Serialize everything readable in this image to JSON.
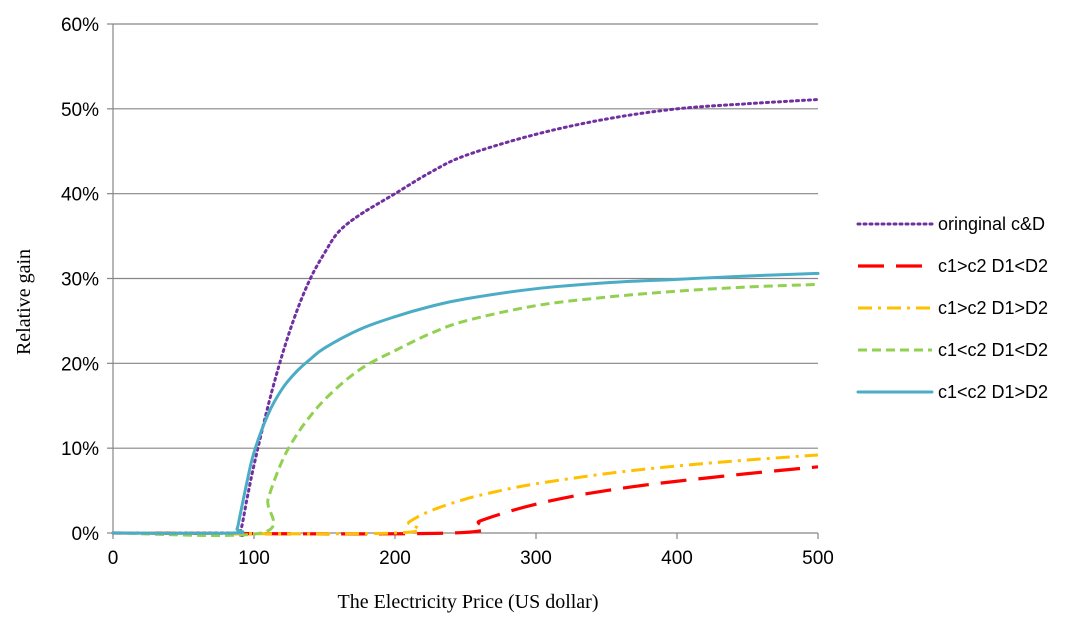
{
  "chart_data": {
    "type": "line",
    "title": "",
    "xlabel": "The Electricity Price (US dollar)",
    "ylabel": "Relative gain",
    "xlim": [
      0,
      500
    ],
    "ylim": [
      0,
      60
    ],
    "x_ticks": [
      0,
      100,
      200,
      300,
      400,
      500
    ],
    "y_ticks": [
      0,
      10,
      20,
      30,
      40,
      50,
      60
    ],
    "y_tick_labels": [
      "0%",
      "10%",
      "20%",
      "30%",
      "40%",
      "50%",
      "60%"
    ],
    "grid": "horizontal",
    "legend_position": "right",
    "series": [
      {
        "name": "oringinal c&D",
        "color": "#7030a0",
        "dash": "dotted",
        "x": [
          0,
          85,
          90,
          95,
          100,
          110,
          120,
          130,
          140,
          150,
          160,
          175,
          200,
          225,
          250,
          300,
          350,
          400,
          450,
          500
        ],
        "y": [
          0,
          0,
          0,
          4,
          8,
          15,
          21,
          26,
          30,
          33,
          35.5,
          37.5,
          40,
          42.5,
          44.5,
          47,
          48.8,
          50,
          50.6,
          51.1
        ]
      },
      {
        "name": "c1>c2 D1<D2",
        "color": "#ff0000",
        "dash": "long-dash",
        "x": [
          0,
          240,
          260,
          280,
          300,
          325,
          350,
          375,
          400,
          450,
          500
        ],
        "y": [
          0,
          0,
          1.4,
          2.5,
          3.4,
          4.3,
          5.0,
          5.6,
          6.1,
          7.0,
          7.8
        ]
      },
      {
        "name": "c1>c2 D1>D2",
        "color": "#ffc000",
        "dash": "dash-dot",
        "x": [
          0,
          200,
          210,
          225,
          250,
          275,
          300,
          350,
          400,
          450,
          500
        ],
        "y": [
          0,
          0,
          1.3,
          2.6,
          4.0,
          5.0,
          5.8,
          7.0,
          7.9,
          8.6,
          9.2
        ]
      },
      {
        "name": "c1<c2 D1<D2",
        "color": "#92d050",
        "dash": "dashed",
        "x": [
          0,
          105,
          110,
          120,
          130,
          140,
          150,
          165,
          180,
          200,
          225,
          250,
          300,
          350,
          400,
          450,
          500
        ],
        "y": [
          0,
          0,
          4,
          8.5,
          11.5,
          13.8,
          15.7,
          18,
          19.8,
          21.5,
          23.5,
          25,
          26.8,
          27.8,
          28.5,
          29,
          29.3
        ]
      },
      {
        "name": "c1<c2 D1>D2",
        "color": "#4bacc6",
        "dash": "solid",
        "x": [
          0,
          85,
          88,
          90,
          95,
          100,
          110,
          120,
          130,
          140,
          150,
          175,
          200,
          225,
          250,
          300,
          350,
          400,
          450,
          500
        ],
        "y": [
          0,
          0,
          0.5,
          2,
          6,
          9.5,
          14,
          17,
          19,
          20.5,
          21.8,
          24,
          25.5,
          26.7,
          27.6,
          28.8,
          29.5,
          29.9,
          30.3,
          30.6
        ]
      }
    ]
  }
}
